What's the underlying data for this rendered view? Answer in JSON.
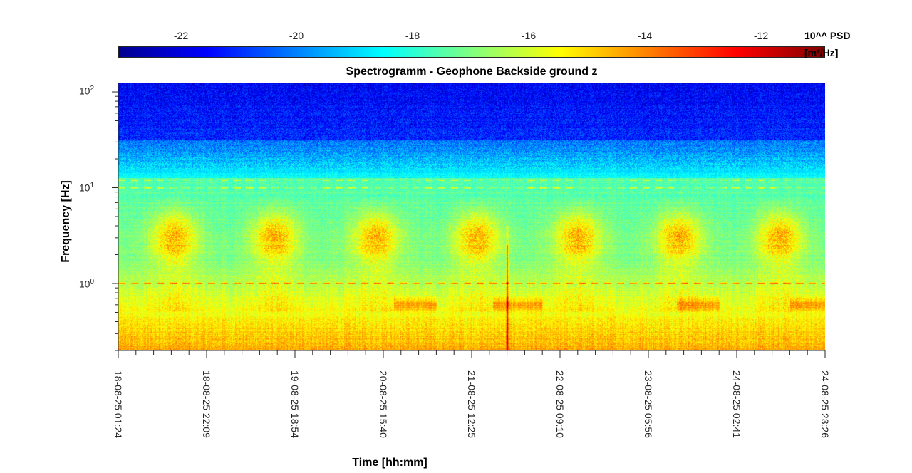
{
  "chart_data": {
    "type": "heatmap",
    "title": "Spectrogramm - Geophone Backside ground z",
    "xlabel": "Time [hh:mm]",
    "ylabel": "Frequency [Hz]",
    "x_tick_labels": [
      "18-08-25 01:24",
      "18-08-25 22:09",
      "19-08-25 18:54",
      "20-08-25 15:40",
      "21-08-25 12:25",
      "22-08-25 09:10",
      "23-08-25 05:56",
      "24-08-25 02:41",
      "24-08-25 23:26"
    ],
    "y_scale": "log",
    "y_ticks": [
      {
        "base": "10",
        "exp": "0",
        "value": 1
      },
      {
        "base": "10",
        "exp": "1",
        "value": 10
      },
      {
        "base": "10",
        "exp": "2",
        "value": 100
      }
    ],
    "ylim": [
      0.2,
      125
    ],
    "colorbar": {
      "label_line1": "10^^ PSD",
      "label_line2": "[m²/Hz]",
      "tick_labels": [
        "-22",
        "-20",
        "-18",
        "-16",
        "-14",
        "-12"
      ],
      "range": [
        -23.0,
        -11.1
      ],
      "colormap": "jet"
    },
    "features": {
      "day_night_bursts_hz": [
        2.0,
        5.0
      ],
      "microseism_peak_hz": 0.6,
      "tonal_lines_hz": [
        1.0,
        10.0,
        12.0
      ],
      "impulse_event_time": "21-08-25 ~20:00"
    }
  }
}
